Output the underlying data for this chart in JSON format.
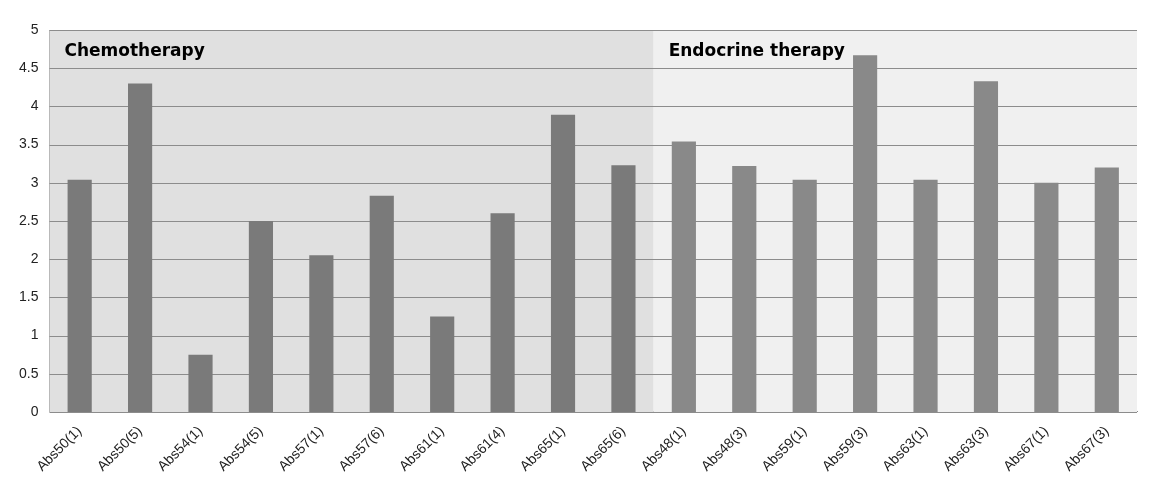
{
  "chart_data": {
    "type": "bar",
    "categories": [
      "Abs50(1)",
      "Abs50(5)",
      "Abs54(1)",
      "Abs54(5)",
      "Abs57(1)",
      "Abs57(6)",
      "Abs61(1)",
      "Abs61(4)",
      "Abs65(1)",
      "Abs65(6)",
      "Abs48(1)",
      "Abs48(3)",
      "Abs59(1)",
      "Abs59(3)",
      "Abs63(1)",
      "Abs63(3)",
      "Abs67(1)",
      "Abs67(3)"
    ],
    "values": [
      3.04,
      4.3,
      0.75,
      2.5,
      2.05,
      2.83,
      1.25,
      2.6,
      3.89,
      3.23,
      3.54,
      3.22,
      3.04,
      4.67,
      3.04,
      4.33,
      3.0,
      3.2
    ],
    "colors": [
      "#7a7a7a",
      "#7a7a7a",
      "#7a7a7a",
      "#7a7a7a",
      "#7a7a7a",
      "#7a7a7a",
      "#7a7a7a",
      "#7a7a7a",
      "#7a7a7a",
      "#7a7a7a",
      "#898989",
      "#898989",
      "#898989",
      "#898989",
      "#898989",
      "#898989",
      "#898989",
      "#898989"
    ],
    "ylim": [
      0,
      5
    ],
    "yticks": [
      0,
      0.5,
      1,
      1.5,
      2,
      2.5,
      3,
      3.5,
      4,
      4.5,
      5
    ],
    "grid": "y",
    "legend": false,
    "bands": [
      {
        "axis": "x",
        "from": "Abs50(1)",
        "to": "Abs65(6)",
        "label": "Chemotherapy",
        "color": "#e0e0e0"
      },
      {
        "axis": "x",
        "from": "Abs48(1)",
        "to": "Abs67(3)",
        "label": "Endocrine therapy",
        "color": "#f0f0f0"
      }
    ]
  }
}
